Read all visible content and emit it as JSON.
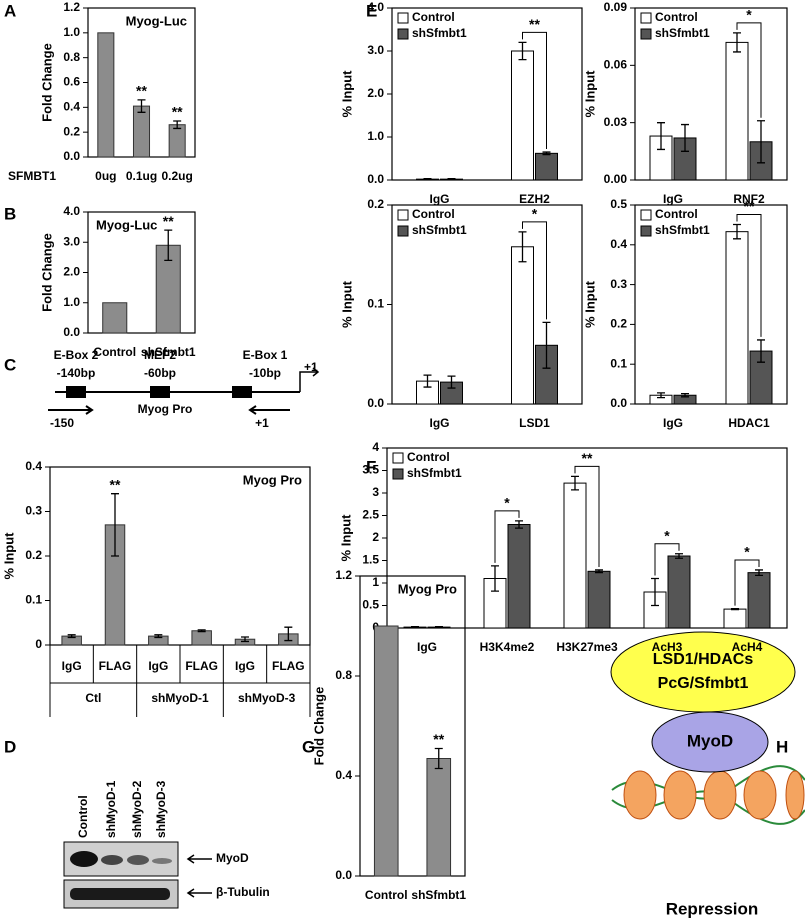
{
  "panel_labels": [
    "A",
    "B",
    "C",
    "D",
    "E",
    "F",
    "G",
    "H"
  ],
  "diagram_c": {
    "labels": [
      "E-Box 2",
      "-140bp",
      "MEF2",
      "-60bp",
      "E-Box 1",
      "-10bp",
      "+1",
      "Myog Pro",
      "-150",
      "+1"
    ]
  },
  "blot_d": {
    "lanes": [
      "Control",
      "shMyoD-1",
      "shMyoD-2",
      "shMyoD-3"
    ],
    "bands": [
      "MyoD",
      "β-Tubulin"
    ]
  },
  "diagram_h": {
    "complex": [
      "LSD1/HDACs",
      "PcG/Sfmbt1"
    ],
    "factor": "MyoD",
    "outcome": "Repression"
  },
  "chart_data": [
    {
      "type": "bar",
      "title": "Myog-Luc",
      "ylabel": "Fold Change",
      "xlabel": "SFMBT1",
      "color": "#8c8c8c",
      "categories": [
        "0ug",
        "0.1ug",
        "0.2ug"
      ],
      "values": [
        1.0,
        0.41,
        0.26
      ],
      "errors": [
        null,
        0.05,
        0.03
      ],
      "significance": [
        null,
        "**",
        "**"
      ],
      "ylim": [
        0,
        1.2
      ],
      "yticks": [
        {
          "value": 0,
          "label": "0.0"
        },
        0.2,
        0.4,
        0.6,
        0.8,
        {
          "value": 1,
          "label": "1.0"
        },
        1.2
      ]
    },
    {
      "type": "bar",
      "title": "Myog-Luc",
      "ylabel": "Fold Change",
      "color": "#8c8c8c",
      "categories": [
        "Control",
        "shSfmbt1"
      ],
      "values": [
        1.0,
        2.9
      ],
      "errors": [
        null,
        0.5
      ],
      "significance": [
        null,
        "**"
      ],
      "ylim": [
        0,
        4
      ],
      "yticks": [
        {
          "value": 0,
          "label": "0.0"
        },
        {
          "value": 1,
          "label": "1.0"
        },
        {
          "value": 2,
          "label": "2.0"
        },
        {
          "value": 3,
          "label": "3.0"
        },
        {
          "value": 4,
          "label": "4.0"
        }
      ]
    },
    {
      "type": "bar",
      "title": "Myog Pro",
      "ylabel": "% Input",
      "color": "#8c8c8c",
      "categories": [
        "IgG",
        "FLAG",
        "IgG",
        "FLAG",
        "IgG",
        "FLAG"
      ],
      "groups": [
        "Ctl",
        "shMyoD-1",
        "shMyoD-3"
      ],
      "values": [
        0.02,
        0.27,
        0.02,
        0.032,
        0.013,
        0.025
      ],
      "errors": [
        0.003,
        0.07,
        0.003,
        0.002,
        0.005,
        0.015
      ],
      "significance": [
        null,
        "**",
        null,
        null,
        null,
        null
      ],
      "ylim": [
        0,
        0.4
      ],
      "yticks": [
        0,
        0.1,
        0.2,
        0.3,
        0.4
      ]
    },
    {
      "type": "grouped-bar",
      "ylabel": "% Input",
      "categories": [
        "IgG",
        "EZH2"
      ],
      "series": [
        {
          "name": "Control",
          "color": "#ffffff",
          "values": [
            0.02,
            3.0
          ],
          "errors": [
            0.01,
            0.2
          ]
        },
        {
          "name": "shSfmbt1",
          "color": "#555555",
          "values": [
            0.02,
            0.62
          ],
          "errors": [
            0.01,
            0.03
          ]
        }
      ],
      "significance": [
        null,
        "**"
      ],
      "ylim": [
        0,
        4
      ],
      "yticks": [
        {
          "value": 0,
          "label": "0.0"
        },
        {
          "value": 1,
          "label": "1.0"
        },
        {
          "value": 2,
          "label": "2.0"
        },
        {
          "value": 3,
          "label": "3.0"
        },
        {
          "value": 4,
          "label": "4.0"
        }
      ]
    },
    {
      "type": "grouped-bar",
      "ylabel": "% Input",
      "categories": [
        "IgG",
        "RNF2"
      ],
      "series": [
        {
          "name": "Control",
          "color": "#ffffff",
          "values": [
            0.023,
            0.072
          ],
          "errors": [
            0.007,
            0.005
          ]
        },
        {
          "name": "shSfmbt1",
          "color": "#555555",
          "values": [
            0.022,
            0.02
          ],
          "errors": [
            0.007,
            0.011
          ]
        }
      ],
      "significance": [
        null,
        "*"
      ],
      "ylim": [
        0,
        0.09
      ],
      "yticks": [
        {
          "value": 0,
          "label": "0.00"
        },
        0.03,
        0.06,
        0.09
      ]
    },
    {
      "type": "grouped-bar",
      "ylabel": "% Input",
      "categories": [
        "IgG",
        "LSD1"
      ],
      "series": [
        {
          "name": "Control",
          "color": "#ffffff",
          "values": [
            0.023,
            0.158
          ],
          "errors": [
            0.006,
            0.015
          ]
        },
        {
          "name": "shSfmbt1",
          "color": "#555555",
          "values": [
            0.022,
            0.059
          ],
          "errors": [
            0.006,
            0.023
          ]
        }
      ],
      "significance": [
        null,
        "*"
      ],
      "ylim": [
        0,
        0.2
      ],
      "yticks": [
        {
          "value": 0,
          "label": "0.0"
        },
        0.1,
        0.2
      ]
    },
    {
      "type": "grouped-bar",
      "ylabel": "% Input",
      "categories": [
        "IgG",
        "HDAC1"
      ],
      "series": [
        {
          "name": "Control",
          "color": "#ffffff",
          "values": [
            0.022,
            0.433
          ],
          "errors": [
            0.006,
            0.018
          ]
        },
        {
          "name": "shSfmbt1",
          "color": "#555555",
          "values": [
            0.022,
            0.133
          ],
          "errors": [
            0.004,
            0.028
          ]
        }
      ],
      "significance": [
        null,
        "**"
      ],
      "ylim": [
        0,
        0.5
      ],
      "yticks": [
        {
          "value": 0,
          "label": "0.0"
        },
        0.1,
        0.2,
        0.3,
        0.4,
        0.5
      ]
    },
    {
      "type": "grouped-bar",
      "ylabel": "% Input",
      "categories": [
        "IgG",
        "H3K4me2",
        "H3K27me3",
        "AcH3",
        "AcH4"
      ],
      "series": [
        {
          "name": "Control",
          "color": "#ffffff",
          "values": [
            0.02,
            1.1,
            3.22,
            0.8,
            0.42
          ],
          "errors": [
            0.01,
            0.28,
            0.15,
            0.3,
            0.01
          ]
        },
        {
          "name": "shSfmbt1",
          "color": "#555555",
          "values": [
            0.02,
            2.3,
            1.26,
            1.6,
            1.23
          ],
          "errors": [
            0.01,
            0.08,
            0.03,
            0.05,
            0.06
          ]
        }
      ],
      "significance": [
        null,
        "*",
        "**",
        "*",
        "*"
      ],
      "ylim": [
        0,
        4
      ],
      "yticks": [
        0,
        0.5,
        1,
        1.5,
        2,
        2.5,
        3,
        3.5,
        4
      ]
    },
    {
      "type": "bar",
      "title": "Myog Pro",
      "ylabel": "Fold Change",
      "color": "#8c8c8c",
      "categories": [
        "Control",
        "shSfmbt1"
      ],
      "values": [
        1.0,
        0.47
      ],
      "errors": [
        null,
        0.04
      ],
      "significance": [
        null,
        "**"
      ],
      "ylim": [
        0,
        1.2
      ],
      "yticks": [
        {
          "value": 0,
          "label": "0.0"
        },
        0.4,
        0.8,
        1.2
      ]
    }
  ]
}
